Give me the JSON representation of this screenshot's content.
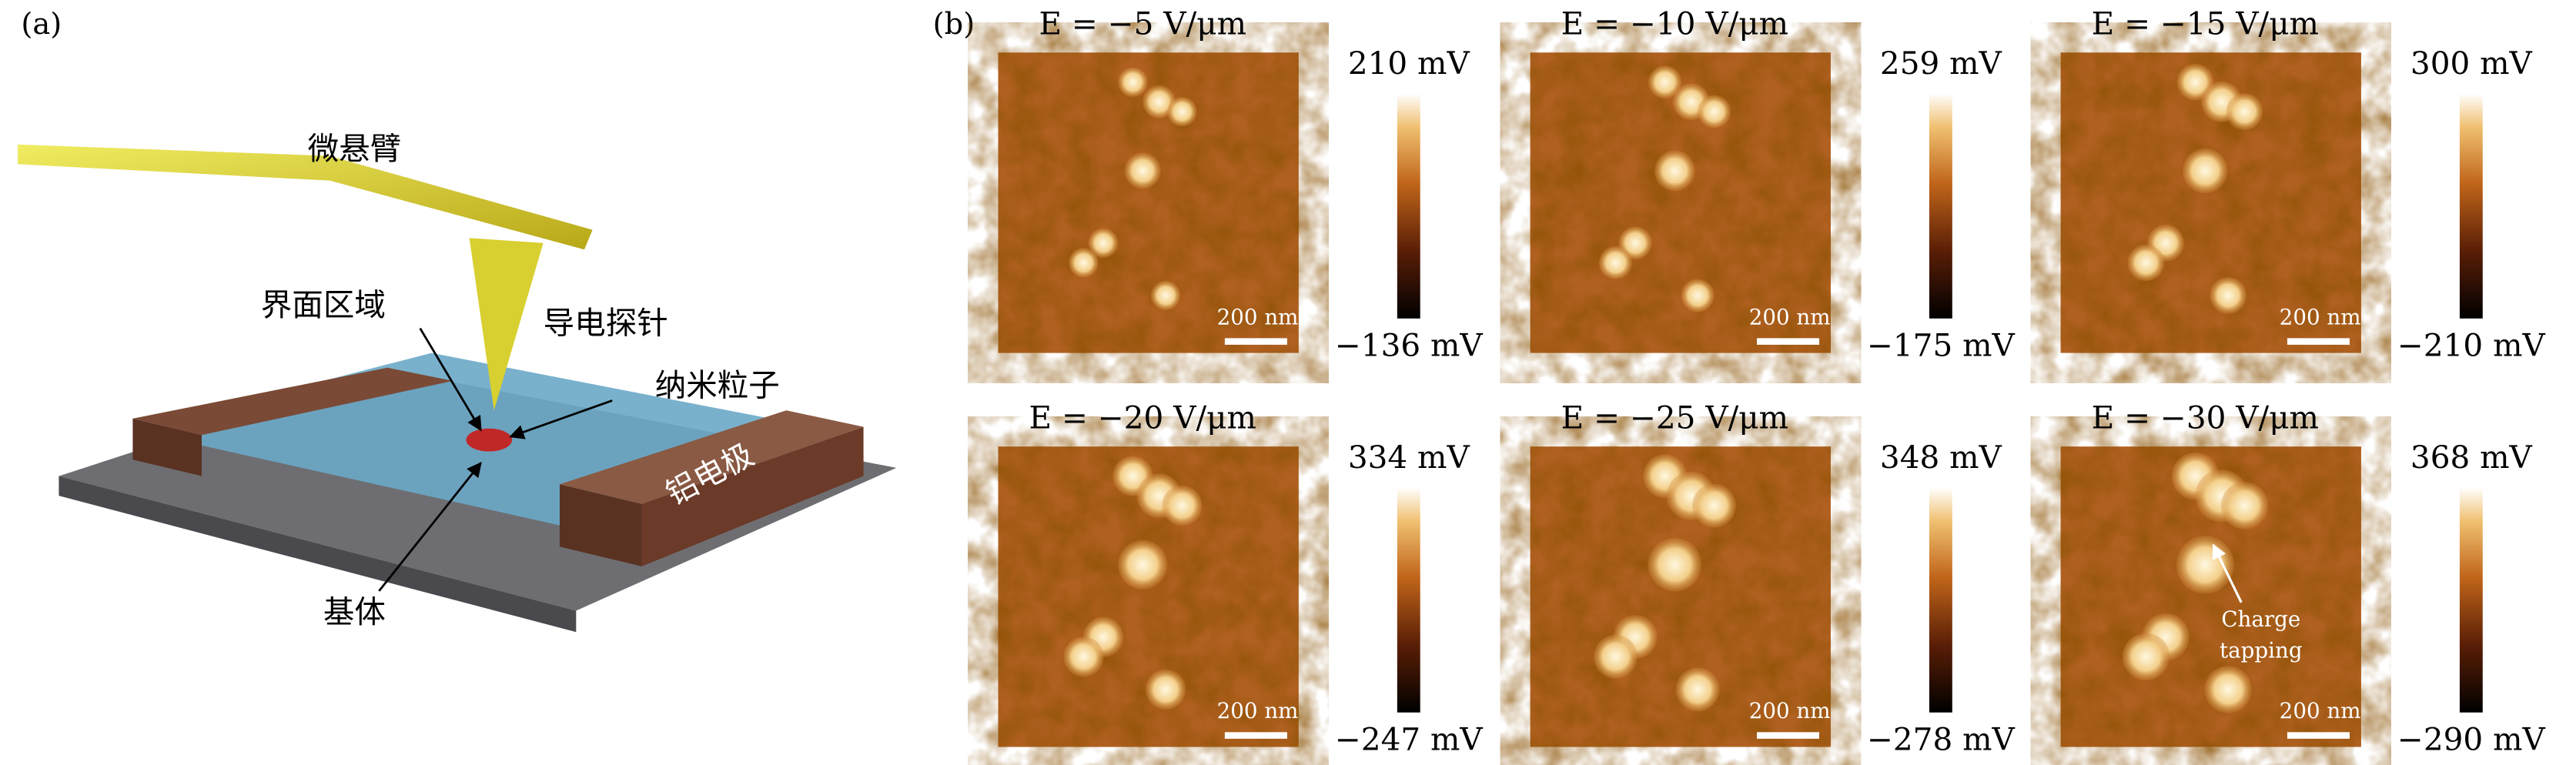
{
  "panel_a": {
    "label": "(a)",
    "cantilever": "微悬臂",
    "interface": "界面区域",
    "probe": "导电探针",
    "particle": "纳米粒子",
    "electrode": "铝电极",
    "substrate": "基体"
  },
  "panel_b": {
    "label": "(b)",
    "maps": [
      {
        "title": "E = −5 V/μm",
        "max": "210 mV",
        "min": "−136 mV",
        "scale_bar": "200 nm"
      },
      {
        "title": "E = −10 V/μm",
        "max": "259 mV",
        "min": "−175 mV",
        "scale_bar": "200 nm"
      },
      {
        "title": "E = −15 V/μm",
        "max": "300 mV",
        "min": "−210 mV",
        "scale_bar": "200 nm"
      },
      {
        "title": "E = −20 V/μm",
        "max": "334 mV",
        "min": "−247 mV",
        "scale_bar": "200 nm"
      },
      {
        "title": "E = −25 V/μm",
        "max": "348 mV",
        "min": "−278 mV",
        "scale_bar": "200 nm"
      },
      {
        "title": "E = −30 V/μm",
        "max": "368 mV",
        "min": "−290 mV",
        "scale_bar": "200 nm"
      }
    ],
    "annotation": [
      "Charge",
      "tapping"
    ]
  }
}
